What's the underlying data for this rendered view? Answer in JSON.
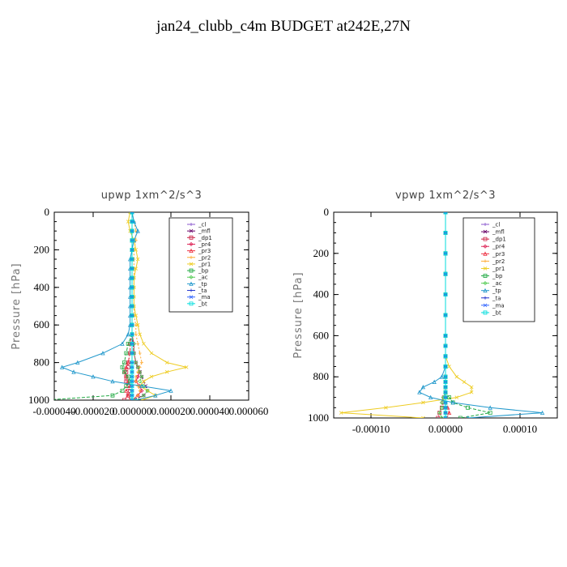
{
  "title": "jan24_clubb_c4m  BUDGET at242E,27N",
  "chart_data": [
    {
      "type": "line",
      "title": "upwp   1xm^2/s^3",
      "ylabel": "Pressure [hPa]",
      "xlim": [
        -4e-05,
        6e-05
      ],
      "ylim": [
        1000,
        0
      ],
      "x_ticks": [
        "-0.000040",
        "-0.000020",
        "0.000000",
        "0.000020",
        "0.000040",
        "0.000060"
      ],
      "x_tick_values": [
        -4e-05,
        -2e-05,
        0,
        2e-05,
        4e-05,
        6e-05
      ],
      "y_ticks": [
        "0",
        "200",
        "400",
        "600",
        "800",
        "1000"
      ],
      "y_tick_values": [
        0,
        200,
        400,
        600,
        800,
        1000
      ],
      "legend_position": "top-right",
      "y": [
        0,
        50,
        100,
        150,
        200,
        250,
        300,
        350,
        400,
        450,
        500,
        550,
        600,
        650,
        700,
        750,
        800,
        825,
        850,
        875,
        900,
        925,
        950,
        975,
        1000
      ],
      "series": [
        {
          "name": "_cl",
          "color": "#8855cc",
          "values": [
            0,
            0,
            0,
            0,
            0,
            0,
            0,
            0,
            0,
            0,
            0,
            0,
            0,
            0,
            0,
            0,
            0,
            0,
            0,
            0,
            0,
            0,
            0,
            0,
            0
          ]
        },
        {
          "name": "_mfl",
          "color": "#660066",
          "values": [
            0,
            0,
            0,
            0,
            0,
            0,
            0,
            0,
            0,
            0,
            0,
            0,
            0,
            0,
            5e-07,
            1e-06,
            2e-06,
            3e-06,
            4e-06,
            5e-06,
            6e-06,
            7e-06,
            8e-06,
            6e-06,
            0
          ]
        },
        {
          "name": "_dp1",
          "color": "#cc2244",
          "values": [
            0,
            0,
            0,
            0,
            0,
            0,
            0,
            0,
            0,
            0,
            0,
            0,
            0,
            0,
            -1e-06,
            -1e-06,
            -2e-06,
            -2e-06,
            -3e-06,
            -3e-06,
            -3e-06,
            -2e-06,
            -1e-06,
            -2e-06,
            -4e-06
          ]
        },
        {
          "name": "_pr4",
          "color": "#dd2255",
          "values": [
            0,
            0,
            0,
            0,
            0,
            0,
            0,
            0,
            0,
            0,
            0,
            0,
            0,
            0,
            1e-06,
            1e-06,
            2e-06,
            3e-06,
            4e-06,
            3e-06,
            2e-06,
            4e-06,
            5e-06,
            3e-06,
            0
          ]
        },
        {
          "name": "_pr3",
          "color": "#ee3344",
          "values": [
            0,
            0,
            0,
            0,
            0,
            0,
            0,
            0,
            0,
            0,
            0,
            0,
            0,
            0,
            -1e-06,
            -1e-06,
            -2e-06,
            -3e-06,
            -4e-06,
            -3e-06,
            -2e-06,
            -1e-06,
            -3e-06,
            -2e-06,
            -1e-06
          ]
        },
        {
          "name": "_pr2",
          "color": "#ffaa33",
          "values": [
            0,
            1e-06,
            2e-06,
            2e-06,
            1e-06,
            1e-06,
            1e-06,
            1e-06,
            1e-06,
            1e-06,
            1e-06,
            1e-06,
            2e-06,
            2e-06,
            3e-06,
            4e-06,
            5e-06,
            4e-06,
            3e-06,
            2e-06,
            2e-06,
            3e-06,
            4e-06,
            3e-06,
            0
          ]
        },
        {
          "name": "_pr1",
          "color": "#eecc22",
          "values": [
            -1e-06,
            -2e-06,
            -1e-06,
            1e-06,
            2e-06,
            3e-06,
            2e-06,
            1e-06,
            1e-06,
            1e-06,
            1e-06,
            2e-06,
            3e-06,
            4e-06,
            6e-06,
            1e-05,
            1.8e-05,
            2.8e-05,
            1.8e-05,
            1e-05,
            6e-06,
            4e-06,
            8e-06,
            1.2e-05,
            5e-06
          ]
        },
        {
          "name": "_bp",
          "color": "#22aa44",
          "values": [
            0,
            0,
            0,
            0,
            0,
            0,
            0,
            0,
            0,
            0,
            0,
            0,
            0,
            0,
            -2e-06,
            -3e-06,
            -4e-06,
            -5e-06,
            -4e-06,
            -2e-06,
            -1e-06,
            -3e-06,
            -5e-06,
            -1e-05,
            -4.5e-05
          ]
        },
        {
          "name": "_ac",
          "color": "#55cc55",
          "values": [
            0,
            0,
            0,
            0,
            0,
            0,
            0,
            0,
            0,
            0,
            0,
            0,
            0,
            0,
            1e-06,
            1e-06,
            2e-06,
            3e-06,
            4e-06,
            5e-06,
            4e-06,
            6e-06,
            8e-06,
            6e-06,
            2e-06
          ]
        },
        {
          "name": "_tp",
          "color": "#2299cc",
          "values": [
            0,
            1e-06,
            3e-06,
            1e-06,
            0,
            -1e-06,
            -1e-06,
            -1e-06,
            -1e-06,
            -1e-06,
            -1e-06,
            -1e-06,
            -1e-06,
            -2e-06,
            -5e-06,
            -1.5e-05,
            -2.8e-05,
            -3.6e-05,
            -3e-05,
            -2e-05,
            -1e-05,
            5e-06,
            2e-05,
            1.2e-05,
            2e-06
          ]
        },
        {
          "name": "_ta",
          "color": "#2233cc",
          "values": [
            0,
            0,
            0,
            0,
            0,
            0,
            0,
            0,
            0,
            0,
            0,
            0,
            0,
            0,
            0,
            0,
            0,
            0,
            0,
            0,
            0,
            0,
            0,
            0,
            0
          ]
        },
        {
          "name": "_ma",
          "color": "#3366ff",
          "values": [
            0,
            0,
            0,
            0,
            0,
            0,
            0,
            0,
            0,
            0,
            0,
            0,
            0,
            0,
            0,
            0,
            0,
            0,
            0,
            0,
            0,
            0,
            0,
            0,
            0
          ]
        },
        {
          "name": "_bt",
          "color": "#00dddd",
          "values": [
            0,
            0,
            0,
            0,
            0,
            0,
            0,
            0,
            0,
            0,
            0,
            0,
            0,
            0,
            0,
            0,
            0,
            0,
            0,
            0,
            0,
            0,
            0,
            0,
            0
          ]
        }
      ]
    },
    {
      "type": "line",
      "title": "vpwp   1xm^2/s^3",
      "ylabel": "Pressure [hPa]",
      "xlim": [
        -0.00015,
        0.00015
      ],
      "ylim": [
        1000,
        0
      ],
      "x_ticks": [
        "-0.00010",
        "0.00000",
        "0.00010"
      ],
      "x_tick_values": [
        -0.0001,
        0,
        0.0001
      ],
      "y_ticks": [
        "0",
        "200",
        "400",
        "600",
        "800",
        "1000"
      ],
      "y_tick_values": [
        0,
        200,
        400,
        600,
        800,
        1000
      ],
      "legend_position": "top-right",
      "y": [
        0,
        100,
        200,
        300,
        400,
        500,
        600,
        650,
        700,
        750,
        800,
        825,
        850,
        875,
        900,
        925,
        950,
        975,
        1000
      ],
      "series": [
        {
          "name": "_cl",
          "color": "#8855cc",
          "values": [
            0,
            0,
            0,
            0,
            0,
            0,
            0,
            0,
            0,
            0,
            0,
            0,
            0,
            0,
            0,
            0,
            0,
            0,
            0
          ]
        },
        {
          "name": "_mfl",
          "color": "#660066",
          "values": [
            0,
            0,
            0,
            0,
            0,
            0,
            0,
            0,
            0,
            0,
            0,
            0,
            0,
            0,
            0,
            0,
            0,
            0,
            0
          ]
        },
        {
          "name": "_dp1",
          "color": "#cc2244",
          "values": [
            0,
            0,
            0,
            0,
            0,
            0,
            0,
            0,
            0,
            0,
            0,
            0,
            0,
            0,
            -2e-06,
            -3e-06,
            -5e-06,
            -8e-06,
            -1e-05
          ]
        },
        {
          "name": "_pr4",
          "color": "#dd2255",
          "values": [
            0,
            0,
            0,
            0,
            0,
            0,
            0,
            0,
            0,
            0,
            0,
            0,
            0,
            0,
            0,
            0,
            0,
            0,
            0
          ]
        },
        {
          "name": "_pr3",
          "color": "#ee3344",
          "values": [
            0,
            0,
            0,
            0,
            0,
            0,
            0,
            0,
            0,
            0,
            0,
            0,
            0,
            0,
            0,
            0,
            3e-06,
            5e-06,
            2e-06
          ]
        },
        {
          "name": "_pr2",
          "color": "#ffaa33",
          "values": [
            0,
            0,
            0,
            0,
            0,
            0,
            0,
            0,
            0,
            0,
            0,
            0,
            0,
            0,
            0,
            0,
            0,
            0,
            0
          ]
        },
        {
          "name": "_pr1",
          "color": "#eecc22",
          "values": [
            0,
            0,
            0,
            0,
            0,
            0,
            0,
            0,
            0,
            5e-06,
            1.5e-05,
            2.5e-05,
            3.5e-05,
            3.5e-05,
            1.5e-05,
            -3e-05,
            -8e-05,
            -0.00014,
            -3e-05
          ]
        },
        {
          "name": "_bp",
          "color": "#22aa44",
          "values": [
            0,
            0,
            0,
            0,
            0,
            0,
            0,
            0,
            0,
            0,
            0,
            0,
            0,
            0,
            5e-06,
            1e-05,
            3e-05,
            6e-05,
            2e-05
          ]
        },
        {
          "name": "_ac",
          "color": "#55cc55",
          "values": [
            0,
            0,
            0,
            0,
            0,
            0,
            0,
            0,
            0,
            0,
            0,
            0,
            0,
            0,
            -3e-06,
            -5e-06,
            -5e-06,
            -8e-06,
            -5e-06
          ]
        },
        {
          "name": "_tp",
          "color": "#2299cc",
          "values": [
            0,
            0,
            0,
            0,
            0,
            0,
            0,
            0,
            0,
            0,
            -5e-06,
            -1.5e-05,
            -3e-05,
            -3.5e-05,
            -2e-05,
            1e-05,
            6e-05,
            0.00013,
            3e-05
          ]
        },
        {
          "name": "_ta",
          "color": "#2233cc",
          "values": [
            0,
            0,
            0,
            0,
            0,
            0,
            0,
            0,
            0,
            0,
            0,
            0,
            0,
            0,
            0,
            0,
            0,
            0,
            0
          ]
        },
        {
          "name": "_ma",
          "color": "#3366ff",
          "values": [
            0,
            0,
            0,
            0,
            0,
            0,
            0,
            0,
            0,
            0,
            0,
            0,
            0,
            0,
            0,
            0,
            0,
            0,
            0
          ]
        },
        {
          "name": "_bt",
          "color": "#00dddd",
          "values": [
            0,
            0,
            0,
            0,
            0,
            0,
            0,
            0,
            0,
            0,
            0,
            0,
            0,
            0,
            0,
            0,
            0,
            0,
            0
          ]
        }
      ]
    }
  ]
}
